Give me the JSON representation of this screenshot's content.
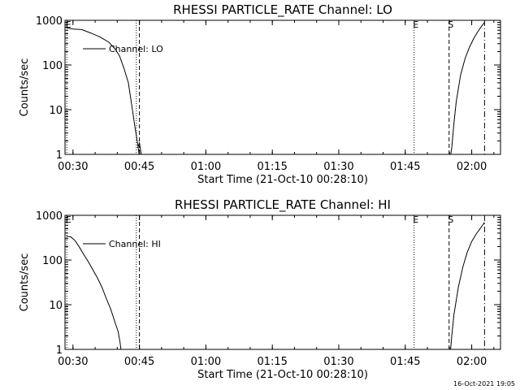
{
  "chart_data": [
    {
      "type": "line",
      "title": "RHESSI PARTICLE_RATE Channel: LO",
      "xlabel": "Start Time (21-Oct-10 00:28:10)",
      "ylabel": "Counts/sec",
      "yscale": "log",
      "ylim": [
        1,
        1000
      ],
      "xlim_minutes": [
        28.2,
        126.5
      ],
      "grid": false,
      "legend": {
        "placement": "top-left",
        "label": "Channel: LO"
      },
      "x_ticks": [
        {
          "label": "00:30",
          "minute": 30
        },
        {
          "label": "00:45",
          "minute": 45
        },
        {
          "label": "01:00",
          "minute": 60
        },
        {
          "label": "01:15",
          "minute": 75
        },
        {
          "label": "01:30",
          "minute": 90
        },
        {
          "label": "01:45",
          "minute": 105
        },
        {
          "label": "02:00",
          "minute": 120
        }
      ],
      "y_ticks": [
        "1",
        "10",
        "100",
        "1000"
      ],
      "markers": [
        {
          "label": "E",
          "style": "dotted",
          "minute": 28.6
        },
        {
          "label": "",
          "style": "dotted",
          "minute": 44.3
        },
        {
          "label": "",
          "style": "dashed",
          "minute": 45.0
        },
        {
          "label": "E",
          "style": "dotted",
          "minute": 107.0
        },
        {
          "label": "S",
          "style": "dashed",
          "minute": 114.9
        },
        {
          "label": "",
          "style": "dashdot",
          "minute": 122.9
        }
      ],
      "series": [
        {
          "name": "Channel: LO",
          "segments": [
            [
              [
                28.5,
                680
              ],
              [
                30,
                640
              ],
              [
                32,
                620
              ],
              [
                34,
                520
              ],
              [
                36,
                430
              ],
              [
                38,
                330
              ],
              [
                39.5,
                230
              ],
              [
                40.5,
                160
              ],
              [
                41.5,
                85
              ],
              [
                42.5,
                40
              ],
              [
                43.3,
                12
              ],
              [
                44,
                4
              ],
              [
                44.5,
                2
              ],
              [
                45,
                0.9
              ]
            ],
            [
              [
                44.6,
                1.4
              ],
              [
                45,
                1.8
              ],
              [
                45.5,
                0.9
              ]
            ],
            [
              [
                115.2,
                0.9
              ],
              [
                115.5,
                1.4
              ],
              [
                116,
                5
              ],
              [
                116.5,
                15
              ],
              [
                117.5,
                60
              ],
              [
                118.5,
                140
              ],
              [
                119.5,
                250
              ],
              [
                120.5,
                400
              ],
              [
                121.5,
                580
              ],
              [
                122.5,
                800
              ],
              [
                122.9,
                900
              ]
            ]
          ]
        }
      ]
    },
    {
      "type": "line",
      "title": "RHESSI PARTICLE_RATE Channel: HI",
      "xlabel": "Start Time (21-Oct-10 00:28:10)",
      "ylabel": "Counts/sec",
      "yscale": "log",
      "ylim": [
        1,
        1000
      ],
      "xlim_minutes": [
        28.2,
        126.5
      ],
      "grid": false,
      "legend": {
        "placement": "top-left",
        "label": "Channel: HI"
      },
      "x_ticks": [
        {
          "label": "00:30",
          "minute": 30
        },
        {
          "label": "00:45",
          "minute": 45
        },
        {
          "label": "01:00",
          "minute": 60
        },
        {
          "label": "01:15",
          "minute": 75
        },
        {
          "label": "01:30",
          "minute": 90
        },
        {
          "label": "01:45",
          "minute": 105
        },
        {
          "label": "02:00",
          "minute": 120
        }
      ],
      "y_ticks": [
        "1",
        "10",
        "100",
        "1000"
      ],
      "markers": [
        {
          "label": "E",
          "style": "dotted",
          "minute": 28.6
        },
        {
          "label": "",
          "style": "dotted",
          "minute": 44.3
        },
        {
          "label": "",
          "style": "dashed",
          "minute": 45.0
        },
        {
          "label": "E",
          "style": "dotted",
          "minute": 107.0
        },
        {
          "label": "S",
          "style": "dashed",
          "minute": 114.9
        },
        {
          "label": "",
          "style": "dashdot",
          "minute": 122.9
        }
      ],
      "series": [
        {
          "name": "Channel: HI",
          "segments": [
            [
              [
                28.5,
                340
              ],
              [
                29.5,
                330
              ],
              [
                30.5,
                270
              ],
              [
                31.5,
                190
              ],
              [
                32.5,
                130
              ],
              [
                33.5,
                90
              ],
              [
                34.5,
                60
              ],
              [
                35.5,
                40
              ],
              [
                36.5,
                25
              ],
              [
                37.5,
                14
              ],
              [
                38.5,
                8
              ],
              [
                39.5,
                4
              ],
              [
                40.2,
                2.5
              ],
              [
                40.6,
                1.5
              ],
              [
                40.9,
                0.9
              ]
            ],
            [
              [
                115.2,
                0.9
              ],
              [
                115.5,
                2
              ],
              [
                116,
                6
              ],
              [
                117,
                25
              ],
              [
                118,
                70
              ],
              [
                119,
                150
              ],
              [
                120,
                260
              ],
              [
                121,
                380
              ],
              [
                122,
                520
              ],
              [
                122.9,
                700
              ]
            ]
          ]
        }
      ]
    }
  ],
  "footer": {
    "timestamp": "16-Oct-2021 19:05"
  }
}
